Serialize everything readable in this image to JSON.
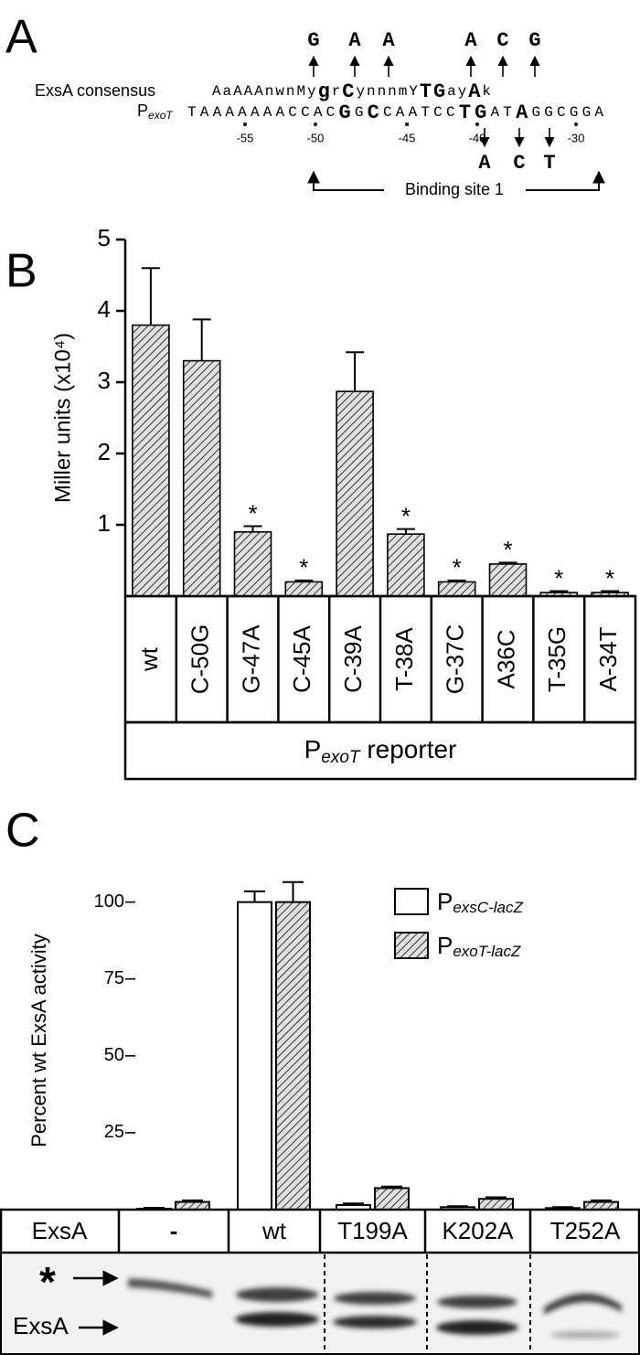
{
  "panel_labels": [
    "A",
    "B",
    "C"
  ],
  "panel_a": {
    "consensus_label": "ExsA consensus",
    "consensus": {
      "segments": [
        "AaAAAnwnMy",
        "g",
        "r",
        "C",
        "ynnnmY",
        "TG",
        "ay",
        "A",
        "k"
      ],
      "bold": [
        false,
        true,
        false,
        true,
        false,
        true,
        false,
        true,
        false
      ]
    },
    "promoter_label": {
      "main": "P",
      "sub": "exoT"
    },
    "promoter": {
      "segments": [
        "TAAAAAAACCAC",
        "G",
        "G",
        "C",
        "CAATCC",
        "TG",
        "AT",
        "A",
        "GGCGGA"
      ],
      "bold": [
        false,
        true,
        false,
        true,
        false,
        true,
        false,
        true,
        false
      ]
    },
    "positions": [
      -55,
      -50,
      -45,
      -40,
      -30
    ],
    "mutations_above": [
      "G",
      "A",
      "A",
      "A",
      "C",
      "G"
    ],
    "mutations_below": [
      "A",
      "C",
      "T"
    ],
    "binding_site_label": "Binding site 1"
  },
  "chart_data": [
    {
      "type": "bar",
      "categories": [
        "wt",
        "C-50G",
        "G-47A",
        "C-45A",
        "C-39A",
        "T-38A",
        "G-37C",
        "A36C",
        "T-35G",
        "A-34T"
      ],
      "values": [
        3.8,
        3.3,
        0.9,
        0.2,
        2.87,
        0.87,
        0.2,
        0.45,
        0.05,
        0.05
      ],
      "errors": [
        0.8,
        0.58,
        0.08,
        0.02,
        0.55,
        0.07,
        0.02,
        0.02,
        0.02,
        0.02
      ],
      "annotations": [
        null,
        null,
        "*",
        "*",
        null,
        "*",
        "*",
        "*",
        "*",
        "*"
      ],
      "ylabel": "Miller units (x10⁴)",
      "xlabel": {
        "main": "P",
        "sub": "exoT",
        "rest": " reporter"
      },
      "ylim": [
        0,
        5
      ],
      "yticks": [
        1,
        2,
        3,
        4,
        5
      ],
      "color": "#d8d8d8",
      "pattern": "hatch"
    },
    {
      "type": "grouped_bar",
      "row_label": "ExsA",
      "categories": [
        "-",
        "wt",
        "T199A",
        "K202A",
        "T252A"
      ],
      "series": [
        {
          "name": "P",
          "name_sub": "exsC-lacZ",
          "color": "#ffffff",
          "values": [
            0.3,
            100,
            1.5,
            0.8,
            0.5
          ],
          "errors": [
            0.3,
            3.5,
            0.5,
            0.3,
            0.3
          ]
        },
        {
          "name": "P",
          "name_sub": "exoT-lacZ",
          "color": "#d8d8d8",
          "pattern": "hatch",
          "values": [
            2.5,
            100,
            7,
            3.5,
            2.5
          ],
          "errors": [
            0.5,
            6.5,
            0.5,
            0.5,
            0.5
          ]
        }
      ],
      "ylabel": "Percent wt ExsA activity",
      "ylim": [
        0,
        110
      ],
      "yticks": [
        25,
        50,
        75,
        100
      ],
      "legend": "upper right",
      "blot_labels": [
        "*",
        "ExsA"
      ]
    }
  ]
}
